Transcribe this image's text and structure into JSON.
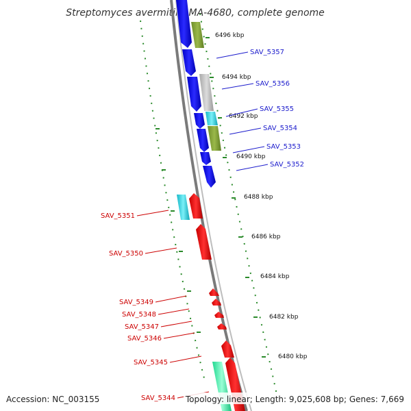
{
  "title": "Streptomyces avermitilis MA-4680, complete genome",
  "accession": "Accession: NC_003155",
  "stats": "Topology: linear; Length: 9,025,608 bp; Genes: 7,669",
  "colors": {
    "upper_strand_label": "#1a1acc",
    "lower_strand_label": "#cc0000",
    "ruler": "#2a8a2a",
    "backbone": "#808080"
  },
  "ruler_ticks": [
    "6496 kbp",
    "6494 kbp",
    "6492 kbp",
    "6490 kbp",
    "6488 kbp",
    "6486 kbp",
    "6484 kbp",
    "6482 kbp",
    "6480 kbp"
  ],
  "genes_upper": [
    {
      "id": "SAV_5357",
      "color": "#0000ee"
    },
    {
      "id": "SAV_5356",
      "color": "#0000ee"
    },
    {
      "id": "SAV_5355",
      "color": "#0000ee"
    },
    {
      "id": "SAV_5354",
      "color": "#0000ee"
    },
    {
      "id": "SAV_5353",
      "color": "#0000ee"
    },
    {
      "id": "SAV_5352",
      "color": "#0000ee"
    }
  ],
  "genes_lower": [
    {
      "id": "SAV_5351",
      "color": "#ee0000"
    },
    {
      "id": "SAV_5350",
      "color": "#ee0000"
    },
    {
      "id": "SAV_5349",
      "color": "#ee0000"
    },
    {
      "id": "SAV_5348",
      "color": "#ee0000"
    },
    {
      "id": "SAV_5347",
      "color": "#ee0000"
    },
    {
      "id": "SAV_5346",
      "color": "#ee0000"
    },
    {
      "id": "SAV_5345",
      "color": "#ee0000"
    },
    {
      "id": "SAV_5344",
      "color": "#ee0000"
    }
  ]
}
